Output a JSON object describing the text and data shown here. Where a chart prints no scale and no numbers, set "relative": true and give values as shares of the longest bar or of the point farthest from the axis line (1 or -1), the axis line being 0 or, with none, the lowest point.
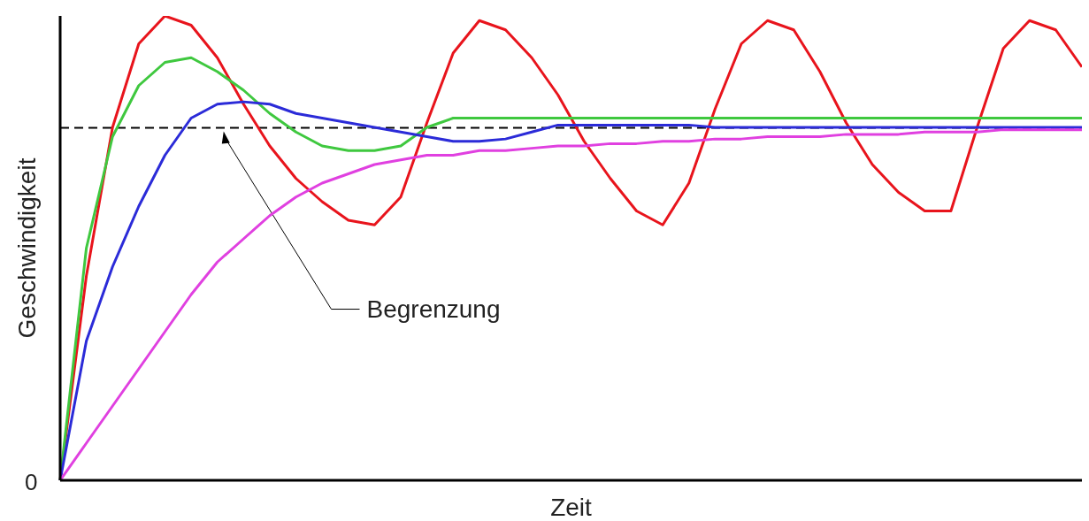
{
  "chart_data": {
    "type": "line",
    "relative": true,
    "xlabel": "Zeit",
    "ylabel": "Geschwindigkeit",
    "annotations": [
      "0"
    ],
    "marker": "none",
    "line_style": "solid",
    "grid": false,
    "legend": false,
    "categories": [
      null,
      null,
      null,
      null,
      null,
      null,
      null,
      null,
      null,
      null,
      null,
      null,
      null,
      null,
      null,
      null,
      null,
      null,
      null,
      null,
      null,
      null,
      null,
      null,
      null,
      null,
      null,
      null,
      null,
      null,
      null,
      null,
      null,
      null,
      null,
      null,
      null,
      null,
      null,
      null
    ],
    "series": [
      {
        "color": "#e8141c",
        "values": [
          0,
          0.44,
          0.76,
          0.94,
          1.0,
          0.98,
          0.91,
          0.81,
          0.72,
          0.65,
          0.6,
          0.56,
          0.55,
          0.61,
          0.77,
          0.92,
          0.99,
          0.97,
          0.91,
          0.83,
          0.73,
          0.65,
          0.58,
          0.55,
          0.64,
          0.8,
          0.94,
          0.99,
          0.97,
          0.88,
          0.77,
          0.68,
          0.62,
          0.58,
          0.58,
          0.76,
          0.93,
          0.99,
          0.97,
          0.89
        ]
      },
      {
        "color": "#3fc83f",
        "values": [
          0,
          0.5,
          0.74,
          0.85,
          0.9,
          0.91,
          0.88,
          0.84,
          0.79,
          0.75,
          0.72,
          0.71,
          0.71,
          0.72,
          0.76,
          0.78,
          0.78,
          0.78,
          0.78,
          0.78,
          0.78,
          0.78,
          0.78,
          0.78,
          0.78,
          0.78,
          0.78,
          0.78,
          0.78,
          0.78,
          0.78,
          0.78,
          0.78,
          0.78,
          0.78,
          0.78,
          0.78,
          0.78,
          0.78,
          0.78
        ]
      },
      {
        "color": "#2b2bd8",
        "values": [
          0,
          0.3,
          0.46,
          0.59,
          0.7,
          0.78,
          0.81,
          0.815,
          0.81,
          0.79,
          0.78,
          0.77,
          0.76,
          0.75,
          0.74,
          0.73,
          0.73,
          0.735,
          0.75,
          0.765,
          0.765,
          0.765,
          0.765,
          0.765,
          0.765,
          0.76,
          0.76,
          0.76,
          0.76,
          0.76,
          0.76,
          0.76,
          0.76,
          0.76,
          0.76,
          0.76,
          0.76,
          0.76,
          0.76,
          0.76
        ]
      },
      {
        "color": "#e040e0",
        "values": [
          0,
          0.08,
          0.16,
          0.24,
          0.32,
          0.4,
          0.47,
          0.52,
          0.57,
          0.61,
          0.64,
          0.66,
          0.68,
          0.69,
          0.7,
          0.7,
          0.71,
          0.71,
          0.715,
          0.72,
          0.72,
          0.725,
          0.725,
          0.73,
          0.73,
          0.735,
          0.735,
          0.74,
          0.74,
          0.74,
          0.745,
          0.745,
          0.745,
          0.75,
          0.75,
          0.75,
          0.755,
          0.755,
          0.755,
          0.755
        ]
      }
    ],
    "ref_lines": [
      {
        "axis": "y",
        "value": 0.759,
        "label": "Begrenzung",
        "color": "#000000",
        "line_style": "dashed"
      }
    ]
  }
}
